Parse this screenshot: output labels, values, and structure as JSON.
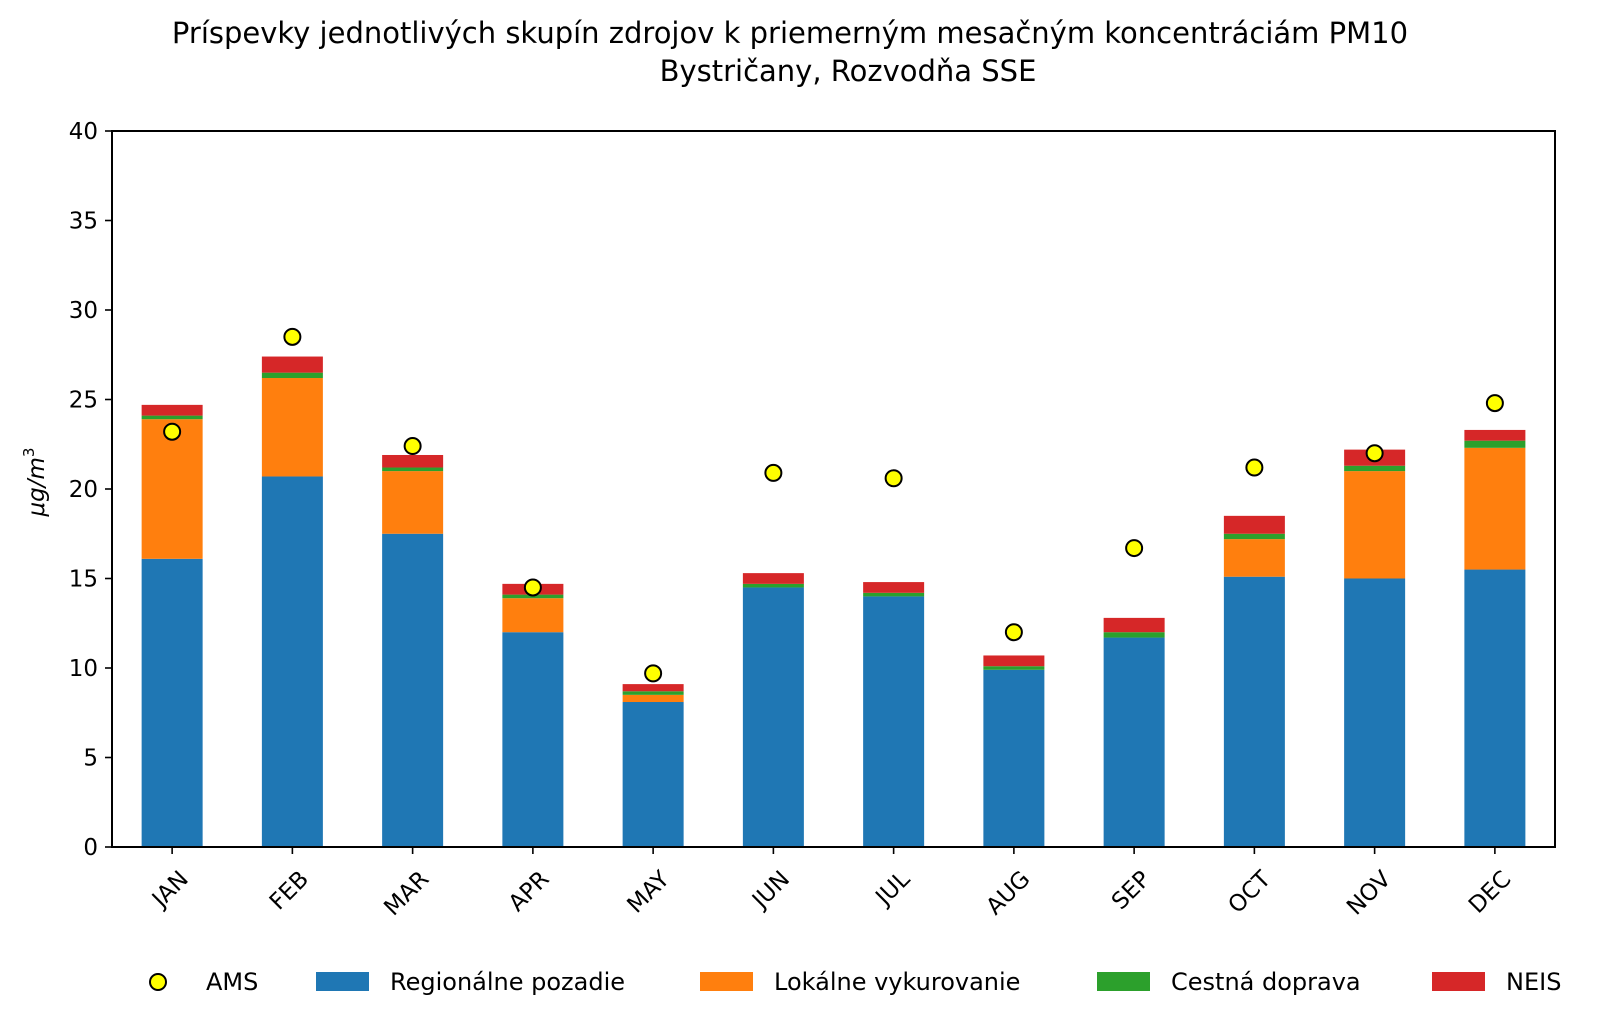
{
  "chart_data": {
    "type": "bar",
    "stacked": true,
    "title": "Príspevky jednotlivých skupín zdrojov k priemerným mesačným koncentráciám PM10",
    "subtitle": "Bystričany, Rozvodňa SSE",
    "xlabel": "",
    "ylabel": "μg/m",
    "ylabel_superscript": "3",
    "ylim": [
      0,
      40
    ],
    "yticks": [
      "0",
      "5",
      "10",
      "15",
      "20",
      "25",
      "30",
      "35",
      "40"
    ],
    "categories": [
      "JAN",
      "FEB",
      "MAR",
      "APR",
      "MAY",
      "JUN",
      "JUL",
      "AUG",
      "SEP",
      "OCT",
      "NOV",
      "DEC"
    ],
    "series": [
      {
        "name": "Regionálne pozadie",
        "color": "#1f77b4",
        "values": [
          16.1,
          20.7,
          17.5,
          12.0,
          8.1,
          14.5,
          14.0,
          9.9,
          11.7,
          15.1,
          15.0,
          15.5
        ]
      },
      {
        "name": "Lokálne vykurovanie",
        "color": "#ff7f0e",
        "values": [
          7.8,
          5.5,
          3.5,
          1.9,
          0.4,
          0.0,
          0.0,
          0.0,
          0.0,
          2.1,
          6.0,
          6.8
        ]
      },
      {
        "name": "Cestná doprava",
        "color": "#2ca02c",
        "values": [
          0.2,
          0.3,
          0.2,
          0.2,
          0.2,
          0.2,
          0.2,
          0.2,
          0.3,
          0.3,
          0.3,
          0.4
        ]
      },
      {
        "name": "NEIS",
        "color": "#d62728",
        "values": [
          0.6,
          0.9,
          0.7,
          0.6,
          0.4,
          0.6,
          0.6,
          0.6,
          0.8,
          1.0,
          0.9,
          0.6
        ]
      }
    ],
    "markers": {
      "name": "AMS",
      "color": "#ffff00",
      "values": [
        23.2,
        28.5,
        22.4,
        14.5,
        9.7,
        20.9,
        20.6,
        12.0,
        16.7,
        21.2,
        22.0,
        24.8
      ]
    },
    "legend": {
      "placement": "bottom",
      "entries": [
        "AMS",
        "Regionálne pozadie",
        "Lokálne vykurovanie",
        "Cestná doprava",
        "NEIS"
      ]
    },
    "grid": false
  }
}
